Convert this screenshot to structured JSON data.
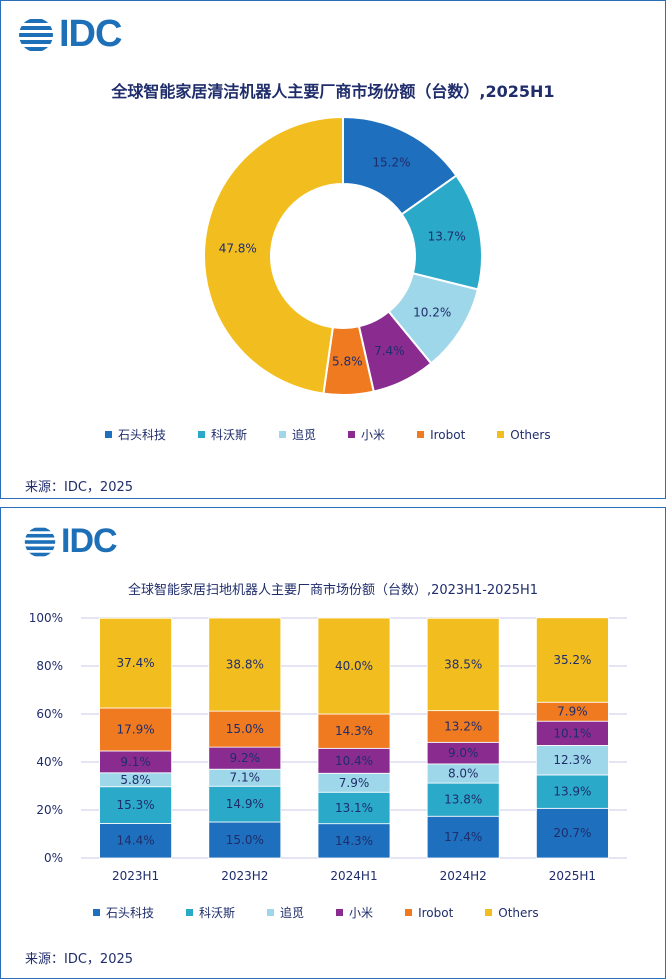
{
  "brand": {
    "logo_text": "IDC"
  },
  "colors": {
    "shitou": "#1f6fbf",
    "kewosi": "#2aa9c9",
    "zhuimi": "#9fd7ea",
    "xiaomi": "#8a2c8f",
    "irobot": "#ef7a1f",
    "others": "#f2be1f"
  },
  "chart_data": [
    {
      "type": "pie",
      "title": "全球智能家居清洁机器人主要厂商市场份额（台数）,2025H1",
      "categories": [
        "石头科技",
        "科沃斯",
        "追觅",
        "小米",
        "Irobot",
        "Others"
      ],
      "values": [
        15.2,
        13.7,
        10.2,
        7.4,
        5.8,
        47.8
      ],
      "labels": [
        "15.2%",
        "13.7%",
        "10.2%",
        "7.4%",
        "5.8%",
        "47.8%"
      ],
      "colors": [
        "#1f6fbf",
        "#2aa9c9",
        "#9fd7ea",
        "#8a2c8f",
        "#ef7a1f",
        "#f2be1f"
      ],
      "legend": "bottom",
      "source": "来源：IDC，2025"
    },
    {
      "type": "bar",
      "stacked": true,
      "title": "全球智能家居扫地机器人主要厂商市场份额（台数）,2023H1-2025H1",
      "categories": [
        "2023H1",
        "2023H2",
        "2024H1",
        "2024H2",
        "2025H1"
      ],
      "series": [
        {
          "name": "石头科技",
          "values": [
            14.4,
            15.0,
            14.3,
            17.4,
            20.7
          ],
          "labels": [
            "14.4%",
            "15.0%",
            "14.3%",
            "17.4%",
            "20.7%"
          ],
          "color": "#1f6fbf"
        },
        {
          "name": "科沃斯",
          "values": [
            15.3,
            14.9,
            13.1,
            13.8,
            13.9
          ],
          "labels": [
            "15.3%",
            "14.9%",
            "13.1%",
            "13.8%",
            "13.9%"
          ],
          "color": "#2aa9c9"
        },
        {
          "name": "追觅",
          "values": [
            5.8,
            7.1,
            7.9,
            8.0,
            12.3
          ],
          "labels": [
            "5.8%",
            "7.1%",
            "7.9%",
            "8.0%",
            "12.3%"
          ],
          "color": "#9fd7ea"
        },
        {
          "name": "小米",
          "values": [
            9.1,
            9.2,
            10.4,
            9.0,
            10.1
          ],
          "labels": [
            "9.1%",
            "9.2%",
            "10.4%",
            "9.0%",
            "10.1%"
          ],
          "color": "#8a2c8f"
        },
        {
          "name": "Irobot",
          "values": [
            17.9,
            15.0,
            14.3,
            13.2,
            7.9
          ],
          "labels": [
            "17.9%",
            "15.0%",
            "14.3%",
            "13.2%",
            "7.9%"
          ],
          "color": "#ef7a1f"
        },
        {
          "name": "Others",
          "values": [
            37.4,
            38.8,
            40.0,
            38.5,
            35.2
          ],
          "labels": [
            "37.4%",
            "38.8%",
            "40.0%",
            "38.5%",
            "35.2%"
          ],
          "color": "#f2be1f"
        }
      ],
      "yticks": [
        "0%",
        "20%",
        "40%",
        "60%",
        "80%",
        "100%"
      ],
      "ylim": [
        0,
        100
      ],
      "grid": true,
      "legend": "bottom",
      "source": "来源：IDC，2025"
    }
  ]
}
